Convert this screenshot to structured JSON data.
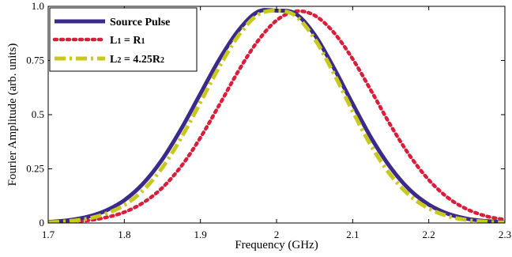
{
  "chart_data": {
    "type": "line",
    "xlabel": "Frequency (GHz)",
    "ylabel": "Fourier Amplitude (arb. units)",
    "xlim": [
      1.7,
      2.3
    ],
    "ylim": [
      0,
      1.0
    ],
    "xticks": [
      "1.7",
      "1.8",
      "1.9",
      "2",
      "2.1",
      "2.2",
      "2.3"
    ],
    "yticks": [
      "0",
      "0.25",
      "0.5",
      "0.75",
      "1.0"
    ],
    "grid": false,
    "legend_position": "top-left",
    "series": [
      {
        "name": "Source Pulse",
        "color": "#3a2a8c",
        "style": "solid",
        "x": [
          1.7,
          1.725,
          1.75,
          1.775,
          1.8,
          1.825,
          1.85,
          1.875,
          1.9,
          1.925,
          1.95,
          1.975,
          2.0,
          2.025,
          2.05,
          2.075,
          2.1,
          2.125,
          2.15,
          2.175,
          2.2,
          2.225,
          2.25,
          2.275,
          2.3
        ],
        "y": [
          0.005,
          0.012,
          0.027,
          0.056,
          0.105,
          0.183,
          0.294,
          0.436,
          0.597,
          0.756,
          0.889,
          0.974,
          0.98,
          0.966,
          0.869,
          0.718,
          0.55,
          0.389,
          0.255,
          0.153,
          0.085,
          0.043,
          0.02,
          0.009,
          0.003
        ]
      },
      {
        "name": "L₁ = R₁",
        "name_parts": {
          "main1": "L",
          "sub1": "1",
          "mid": " = R",
          "sub2": "1"
        },
        "color": "#d91e3c",
        "style": "dotted",
        "x": [
          1.7,
          1.725,
          1.75,
          1.775,
          1.8,
          1.825,
          1.85,
          1.875,
          1.9,
          1.925,
          1.95,
          1.975,
          2.0,
          2.025,
          2.05,
          2.075,
          2.1,
          2.125,
          2.15,
          2.175,
          2.2,
          2.225,
          2.25,
          2.275,
          2.3
        ],
        "y": [
          0.002,
          0.005,
          0.011,
          0.025,
          0.05,
          0.094,
          0.163,
          0.263,
          0.394,
          0.546,
          0.702,
          0.838,
          0.935,
          0.977,
          0.958,
          0.88,
          0.757,
          0.606,
          0.45,
          0.311,
          0.199,
          0.117,
          0.064,
          0.032,
          0.015
        ]
      },
      {
        "name": "L₂ = 4.25R₂",
        "name_parts": {
          "main1": "L",
          "sub1": "2",
          "mid": " = 4.25R",
          "sub2": "2"
        },
        "color": "#c8c81e",
        "style": "dashdot",
        "x": [
          1.7,
          1.725,
          1.75,
          1.775,
          1.8,
          1.825,
          1.85,
          1.875,
          1.9,
          1.925,
          1.95,
          1.975,
          2.0,
          2.025,
          2.05,
          2.075,
          2.1,
          2.125,
          2.15,
          2.175,
          2.2,
          2.225,
          2.25,
          2.275,
          2.3
        ],
        "y": [
          0.003,
          0.008,
          0.019,
          0.042,
          0.083,
          0.152,
          0.256,
          0.395,
          0.557,
          0.722,
          0.865,
          0.96,
          0.98,
          0.956,
          0.85,
          0.692,
          0.516,
          0.352,
          0.221,
          0.127,
          0.067,
          0.032,
          0.014,
          0.006,
          0.002
        ]
      }
    ]
  }
}
